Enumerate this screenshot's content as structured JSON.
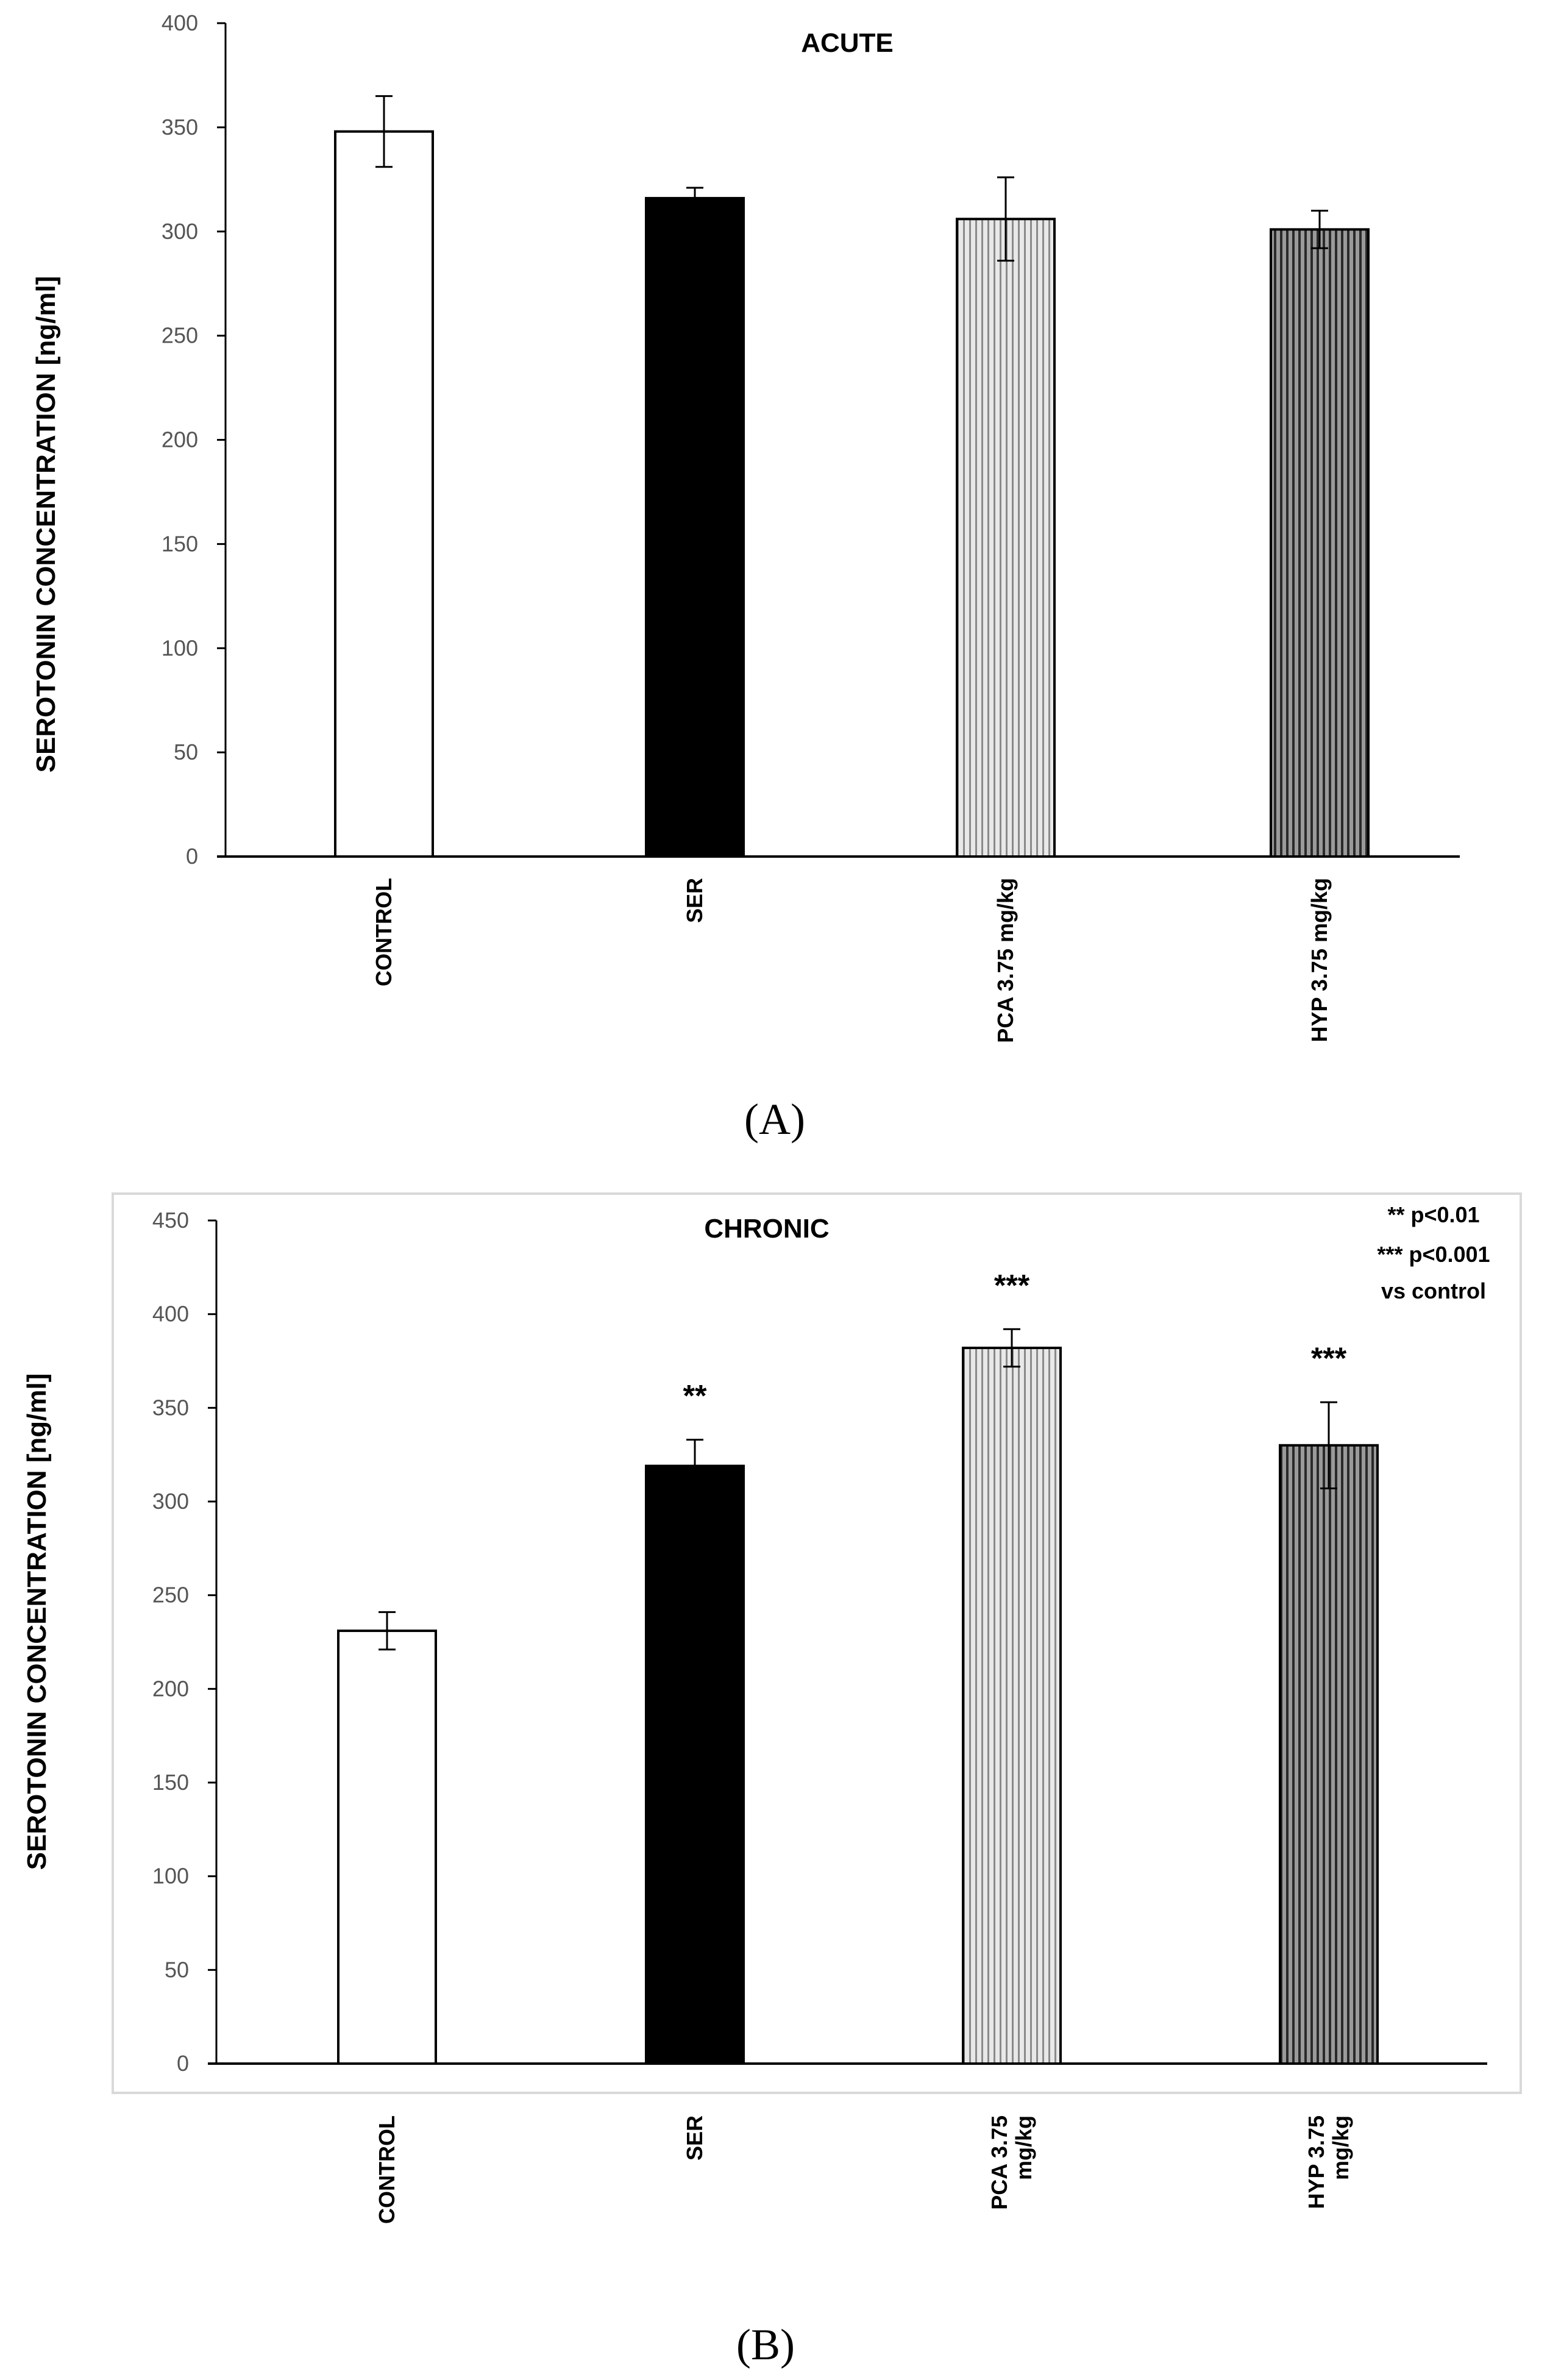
{
  "chart_data": [
    {
      "panel_label": "(A)",
      "type": "bar",
      "title": "ACUTE",
      "ylabel": "SEROTONIN CONCENTRATION [ng/ml]",
      "xlabel": "",
      "ylim": [
        0,
        400
      ],
      "yticks": [
        0,
        50,
        100,
        150,
        200,
        250,
        300,
        350,
        400
      ],
      "categories": [
        "CONTROL",
        "SER",
        "PCA 3.75 mg/kg",
        "HYP 3.75 mg/kg"
      ],
      "values": [
        348,
        316,
        306,
        301
      ],
      "errors": [
        17,
        5,
        20,
        9
      ],
      "fills": [
        "#ffffff",
        "#000000",
        "stripe-light",
        "stripe-dark"
      ],
      "significance": [
        "",
        "",
        "",
        ""
      ],
      "legend": []
    },
    {
      "panel_label": "(B)",
      "type": "bar",
      "title": "CHRONIC",
      "ylabel": "SEROTONIN CONCENTRATION [ng/ml]",
      "xlabel": "",
      "ylim": [
        0,
        450
      ],
      "yticks": [
        0,
        50,
        100,
        150,
        200,
        250,
        300,
        350,
        400,
        450
      ],
      "categories": [
        "CONTROL",
        "SER",
        "PCA 3.75 mg/kg",
        "HYP 3.75 mg/kg"
      ],
      "category_lines": [
        [
          "CONTROL"
        ],
        [
          "SER"
        ],
        [
          "PCA 3.75",
          "mg/kg"
        ],
        [
          "HYP 3.75",
          "mg/kg"
        ]
      ],
      "values": [
        231,
        319,
        382,
        330
      ],
      "errors": [
        10,
        14,
        10,
        23
      ],
      "fills": [
        "#ffffff",
        "#000000",
        "stripe-light",
        "stripe-dark"
      ],
      "significance": [
        "",
        "**",
        "***",
        "***"
      ],
      "legend": [
        "** p<0.01",
        "*** p<0.001",
        "vs control"
      ]
    }
  ],
  "colors": {
    "axis": "#000000",
    "tick_text": "#555555",
    "frame": "#d9d9d9"
  }
}
